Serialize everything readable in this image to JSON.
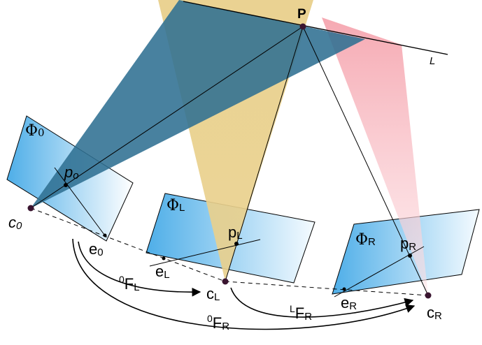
{
  "labels": {
    "point_P": "P",
    "line_L": "L",
    "phi0": "Φ",
    "phi0_sub": "0",
    "phiL": "Φ",
    "phiL_sub": "L",
    "phiR": "Φ",
    "phiR_sub": "R",
    "p0": "p",
    "p0_sub": "o",
    "pL": "p",
    "pL_sub": "L",
    "pR": "p",
    "pR_sub": "R",
    "c0": "c",
    "c0_sub": "0",
    "cL": "c",
    "cL_sub": "L",
    "cR": "c",
    "cR_sub": "R",
    "e0": "e",
    "e0_sub": "0",
    "eL": "e",
    "eL_sub": "L",
    "eR": "e",
    "eR_sub": "R",
    "F0L_pre": "0",
    "F0L": "F",
    "F0L_sub": "L",
    "FLR_pre": "L",
    "FLR": "F",
    "FLR_sub": "R",
    "F0R_pre": "0",
    "F0R": "F",
    "F0R_sub": "R"
  },
  "colors": {
    "cone_blue": "#2f6f92",
    "cone_tan": "#e9d08c",
    "cone_pink": "#f9b9c0",
    "plane_blue": "#4eaee8",
    "point": "#3a1530"
  }
}
